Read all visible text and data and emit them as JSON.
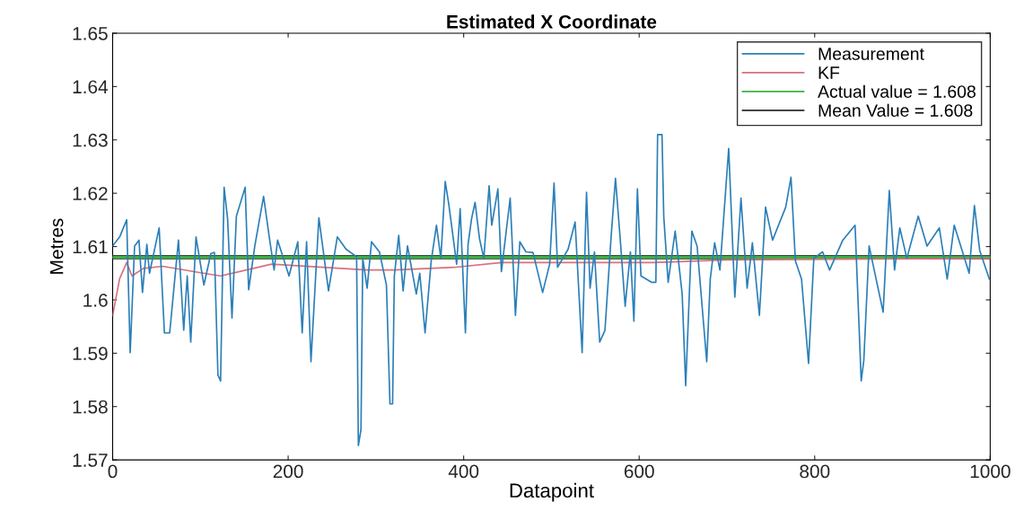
{
  "chart_data": {
    "type": "line",
    "title": "Estimated X Coordinate",
    "xlabel": "Datapoint",
    "ylabel": "Metres",
    "xlim": [
      0,
      1000
    ],
    "xticks": [
      0,
      200,
      400,
      600,
      800,
      1000
    ],
    "ylim": [
      1.57,
      1.65
    ],
    "yticks": [
      1.57,
      1.58,
      1.59,
      1.6,
      1.61,
      1.62,
      1.63,
      1.64,
      1.65
    ],
    "grid": false,
    "legend": "top right",
    "marker": "none",
    "line_style": "solid",
    "series": [
      {
        "name": "Measurement",
        "color": "#2b7fb8",
        "x": [
          0,
          8,
          16,
          20,
          25,
          30,
          34,
          39,
          42,
          53,
          59,
          65,
          75,
          81,
          85,
          89,
          95,
          104,
          112,
          116,
          120,
          123,
          127,
          131,
          136,
          141,
          151,
          155,
          162,
          172,
          179,
          184,
          188,
          201,
          211,
          216,
          221,
          226,
          235,
          246,
          256,
          266,
          278,
          280,
          283,
          285,
          290,
          295,
          304,
          312,
          316,
          319,
          321,
          326,
          331,
          336,
          346,
          350,
          356,
          363,
          369,
          374,
          379,
          383,
          392,
          396,
          402,
          405,
          409,
          413,
          418,
          423,
          429,
          432,
          439,
          443,
          453,
          459,
          464,
          471,
          479,
          490,
          498,
          503,
          507,
          519,
          527,
          535,
          540,
          544,
          549,
          555,
          561,
          568,
          573,
          579,
          584,
          590,
          594,
          598,
          602,
          614,
          619,
          621,
          626,
          628,
          633,
          641,
          649,
          653,
          660,
          666,
          677,
          681,
          686,
          692,
          702,
          709,
          716,
          723,
          729,
          737,
          744,
          752,
          767,
          773,
          778,
          785,
          793,
          799,
          809,
          817,
          832,
          846,
          853,
          856,
          862,
          878,
          885,
          891,
          897,
          905,
          918,
          928,
          942,
          951,
          959,
          976,
          982,
          988,
          999
        ],
        "values": [
          1.6101,
          1.6118,
          1.615,
          1.5901,
          1.6101,
          1.6112,
          1.6014,
          1.6104,
          1.605,
          1.6135,
          1.5938,
          1.5938,
          1.6112,
          1.5943,
          1.6045,
          1.5921,
          1.6118,
          1.6028,
          1.6087,
          1.6089,
          1.5859,
          1.5848,
          1.6211,
          1.6152,
          1.5966,
          1.6157,
          1.6211,
          1.6019,
          1.6101,
          1.6194,
          1.6112,
          1.6056,
          1.6112,
          1.6045,
          1.6109,
          1.5938,
          1.6109,
          1.5884,
          1.6154,
          1.6017,
          1.6118,
          1.6095,
          1.6081,
          1.5727,
          1.5757,
          1.6078,
          1.6022,
          1.6109,
          1.609,
          1.6028,
          1.5805,
          1.5805,
          1.6045,
          1.6121,
          1.6017,
          1.6101,
          1.6011,
          1.605,
          1.5938,
          1.6073,
          1.614,
          1.6078,
          1.6222,
          1.618,
          1.6067,
          1.6171,
          1.5938,
          1.6104,
          1.6152,
          1.6183,
          1.6115,
          1.6078,
          1.6214,
          1.614,
          1.6208,
          1.6053,
          1.6191,
          1.5971,
          1.6109,
          1.609,
          1.6089,
          1.6014,
          1.6067,
          1.6219,
          1.6061,
          1.6095,
          1.6146,
          1.5901,
          1.6202,
          1.6022,
          1.609,
          1.5921,
          1.5943,
          1.6118,
          1.6228,
          1.6101,
          1.5988,
          1.609,
          1.596,
          1.6208,
          1.6045,
          1.6033,
          1.6033,
          1.631,
          1.631,
          1.6157,
          1.6033,
          1.6129,
          1.6011,
          1.5839,
          1.6129,
          1.6101,
          1.5884,
          1.6039,
          1.6107,
          1.6056,
          1.6284,
          1.6005,
          1.6191,
          1.6022,
          1.6107,
          1.5971,
          1.6174,
          1.6112,
          1.6174,
          1.623,
          1.6073,
          1.6039,
          1.5881,
          1.6078,
          1.609,
          1.6056,
          1.6112,
          1.614,
          1.5848,
          1.5887,
          1.6101,
          1.5977,
          1.6205,
          1.6056,
          1.6135,
          1.6078,
          1.6157,
          1.6101,
          1.6135,
          1.6039,
          1.614,
          1.605,
          1.6177,
          1.6093,
          1.6039
        ]
      },
      {
        "name": "KF",
        "color": "#d9707e",
        "x": [
          0,
          8,
          16,
          22,
          35,
          57,
          96,
          123,
          181,
          290,
          321,
          389,
          443,
          524,
          616,
          700,
          1000
        ],
        "values": [
          1.5971,
          1.604,
          1.607,
          1.6045,
          1.6059,
          1.6063,
          1.6052,
          1.6045,
          1.6067,
          1.6056,
          1.6056,
          1.6061,
          1.607,
          1.607,
          1.607,
          1.6075,
          1.6078
        ]
      },
      {
        "name": "Actual value = 1.608",
        "color": "#3cb043",
        "x": [
          0,
          1000
        ],
        "values": [
          1.608,
          1.608
        ]
      },
      {
        "name": "Mean Value = 1.608",
        "color": "#2a2a2a",
        "x": [
          0,
          1000
        ],
        "values": [
          1.608,
          1.608
        ]
      }
    ]
  }
}
